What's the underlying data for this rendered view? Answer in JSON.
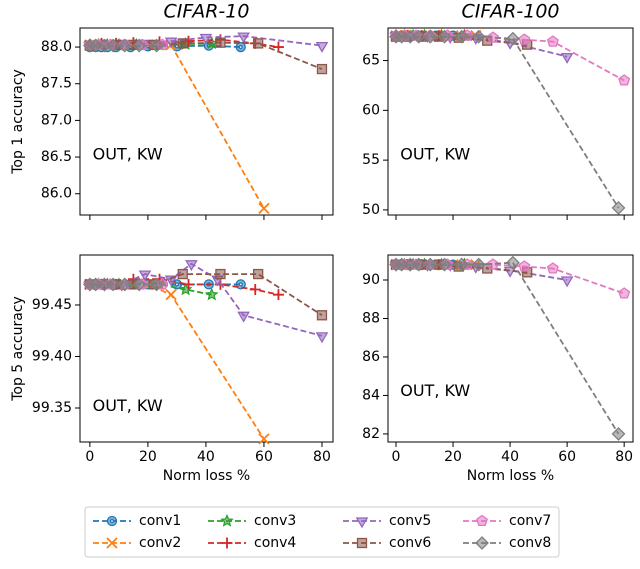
{
  "chart_data": [
    {
      "type": "line",
      "title": "CIFAR-10",
      "ylabel": "Top 1 accuracy",
      "annotation": "OUT, KW",
      "show_xticklabels": false,
      "xlim": [
        -3.4,
        83.8
      ],
      "xticks": [
        0,
        20,
        40,
        60,
        80
      ],
      "ylim": [
        85.71,
        88.26
      ],
      "yticks": [
        {
          "value": 88,
          "label": "88.0"
        },
        87.5,
        {
          "value": 87,
          "label": "87.0"
        },
        86.5,
        {
          "value": 86,
          "label": "86.0"
        }
      ],
      "series": [
        {
          "x": [
            0,
            2,
            4,
            6,
            9,
            14,
            20,
            30,
            41,
            52
          ],
          "values": [
            88.0,
            88.0,
            88.0,
            88.0,
            88.0,
            88.0,
            88.01,
            88.01,
            88.02,
            88.0
          ]
        },
        {
          "x": [
            0,
            2,
            4,
            6,
            9,
            14,
            20,
            28,
            60
          ],
          "values": [
            88.03,
            88.03,
            88.03,
            88.03,
            88.03,
            88.03,
            88.03,
            88.03,
            85.8
          ]
        },
        {
          "x": [
            0,
            3,
            6,
            10,
            16,
            24,
            33,
            42
          ],
          "values": [
            88.03,
            88.03,
            88.03,
            88.03,
            88.03,
            88.03,
            88.04,
            88.05
          ]
        },
        {
          "x": [
            0,
            4,
            9,
            15,
            24,
            34,
            45,
            57,
            65
          ],
          "values": [
            88.03,
            88.05,
            88.05,
            88.06,
            88.07,
            88.08,
            88.1,
            88.05,
            88.0
          ]
        },
        {
          "x": [
            0,
            5,
            11,
            19,
            28,
            40,
            53,
            80
          ],
          "values": [
            88.03,
            88.03,
            88.05,
            88.05,
            88.08,
            88.13,
            88.15,
            88.02
          ]
        },
        {
          "x": [
            0,
            4,
            9,
            15,
            22,
            32,
            45,
            58,
            80
          ],
          "values": [
            88.02,
            88.03,
            88.03,
            88.03,
            88.03,
            88.05,
            88.06,
            88.05,
            87.7
          ]
        },
        {
          "x": [
            0,
            3,
            7,
            12,
            18,
            25
          ],
          "values": [
            88.03,
            88.03,
            88.03,
            88.03,
            88.03,
            88.03
          ]
        },
        {
          "x": [
            0,
            2,
            5,
            8,
            12,
            17,
            23
          ],
          "values": [
            88.02,
            88.02,
            88.02,
            88.02,
            88.02,
            88.02,
            88.02
          ]
        }
      ]
    },
    {
      "type": "line",
      "title": "CIFAR-100",
      "annotation": "OUT, KW",
      "show_xticklabels": false,
      "xlim": [
        -2.8,
        83.1
      ],
      "xticks": [
        0,
        20,
        40,
        60,
        80
      ],
      "ylim": [
        49.49,
        68.27
      ],
      "yticks": [
        50,
        55,
        60,
        65
      ],
      "series": [
        {
          "x": [
            0,
            2,
            4,
            6,
            9,
            14,
            20
          ],
          "values": [
            67.5,
            67.5,
            67.5,
            67.5,
            67.5,
            67.5,
            67.5
          ]
        },
        {
          "x": [
            0,
            2,
            4,
            6,
            9,
            14,
            20,
            28
          ],
          "values": [
            67.5,
            67.5,
            67.5,
            67.5,
            67.5,
            67.5,
            67.5,
            67.5
          ]
        },
        {
          "x": [
            0,
            3,
            6,
            10,
            16,
            24
          ],
          "values": [
            67.5,
            67.5,
            67.5,
            67.5,
            67.5,
            67.5
          ]
        },
        {
          "x": [
            0,
            4,
            9,
            15,
            24
          ],
          "values": [
            67.5,
            67.5,
            67.5,
            67.5,
            67.5
          ]
        },
        {
          "x": [
            0,
            5,
            11,
            19,
            28,
            40,
            60
          ],
          "values": [
            67.5,
            67.5,
            67.5,
            67.4,
            67.3,
            66.8,
            65.4
          ]
        },
        {
          "x": [
            0,
            4,
            9,
            15,
            22,
            32,
            46
          ],
          "values": [
            67.4,
            67.4,
            67.4,
            67.4,
            67.3,
            67.0,
            66.6
          ]
        },
        {
          "x": [
            0,
            3,
            7,
            12,
            18,
            25,
            34,
            45,
            55,
            80
          ],
          "values": [
            67.5,
            67.5,
            67.5,
            67.5,
            67.5,
            67.5,
            67.3,
            67.1,
            66.9,
            63.0
          ]
        },
        {
          "x": [
            0,
            2,
            5,
            8,
            12,
            17,
            23,
            29,
            41,
            78
          ],
          "values": [
            67.4,
            67.4,
            67.4,
            67.4,
            67.4,
            67.4,
            67.4,
            67.4,
            67.2,
            50.2
          ]
        }
      ]
    },
    {
      "type": "line",
      "ylabel": "Top 5 accuracy",
      "xlabel": "Norm loss %",
      "annotation": "OUT, KW",
      "show_xticklabels": true,
      "xlim": [
        -3.4,
        83.8
      ],
      "xticks": [
        0,
        20,
        40,
        60,
        80
      ],
      "ylim": [
        99.317,
        99.4985
      ],
      "yticks": [
        99.35,
        {
          "value": 99.4,
          "label": "99.40"
        },
        99.45
      ],
      "series": [
        {
          "x": [
            0,
            2,
            4,
            6,
            9,
            14,
            20,
            30,
            41,
            52
          ],
          "values": [
            99.47,
            99.47,
            99.47,
            99.47,
            99.47,
            99.47,
            99.47,
            99.47,
            99.47,
            99.47
          ]
        },
        {
          "x": [
            0,
            2,
            4,
            6,
            9,
            14,
            20,
            28,
            60
          ],
          "values": [
            99.47,
            99.47,
            99.47,
            99.47,
            99.47,
            99.47,
            99.47,
            99.46,
            99.32
          ]
        },
        {
          "x": [
            0,
            3,
            6,
            10,
            16,
            24,
            33,
            42
          ],
          "values": [
            99.47,
            99.47,
            99.47,
            99.47,
            99.47,
            99.47,
            99.465,
            99.46
          ]
        },
        {
          "x": [
            0,
            4,
            9,
            15,
            24,
            34,
            45,
            57,
            65
          ],
          "values": [
            99.47,
            99.47,
            99.47,
            99.475,
            99.475,
            99.47,
            99.47,
            99.465,
            99.46
          ]
        },
        {
          "x": [
            0,
            5,
            11,
            19,
            28,
            35,
            44,
            53,
            80
          ],
          "values": [
            99.47,
            99.47,
            99.47,
            99.48,
            99.475,
            99.49,
            99.475,
            99.44,
            99.42
          ]
        },
        {
          "x": [
            0,
            4,
            9,
            15,
            22,
            32,
            45,
            58,
            80
          ],
          "values": [
            99.47,
            99.47,
            99.47,
            99.47,
            99.47,
            99.48,
            99.48,
            99.48,
            99.44
          ]
        },
        {
          "x": [
            0,
            3,
            7,
            12,
            18,
            25
          ],
          "values": [
            99.47,
            99.47,
            99.47,
            99.47,
            99.47,
            99.47
          ]
        },
        {
          "x": [
            0,
            2,
            5,
            8,
            12,
            17,
            23
          ],
          "values": [
            99.47,
            99.47,
            99.47,
            99.47,
            99.47,
            99.47,
            99.47
          ]
        }
      ]
    },
    {
      "type": "line",
      "xlabel": "Norm loss %",
      "annotation": "OUT, KW",
      "show_xticklabels": true,
      "xlim": [
        -2.8,
        83.1
      ],
      "xticks": [
        0,
        20,
        40,
        60,
        80
      ],
      "ylim": [
        81.58,
        91.3
      ],
      "yticks": [
        82,
        84,
        86,
        88,
        90
      ],
      "series": [
        {
          "x": [
            0,
            2,
            4,
            6,
            9,
            14,
            20
          ],
          "values": [
            90.8,
            90.8,
            90.8,
            90.8,
            90.8,
            90.8,
            90.8
          ]
        },
        {
          "x": [
            0,
            2,
            4,
            6,
            9,
            14,
            20,
            28
          ],
          "values": [
            90.8,
            90.8,
            90.8,
            90.8,
            90.8,
            90.8,
            90.8,
            90.8
          ]
        },
        {
          "x": [
            0,
            3,
            6,
            10,
            16,
            24
          ],
          "values": [
            90.8,
            90.8,
            90.8,
            90.8,
            90.8,
            90.8
          ]
        },
        {
          "x": [
            0,
            4,
            9,
            15,
            24
          ],
          "values": [
            90.8,
            90.8,
            90.8,
            90.8,
            90.8
          ]
        },
        {
          "x": [
            0,
            5,
            11,
            19,
            28,
            40,
            60
          ],
          "values": [
            90.8,
            90.8,
            90.8,
            90.8,
            90.7,
            90.5,
            90.0
          ]
        },
        {
          "x": [
            0,
            4,
            9,
            15,
            22,
            32,
            46
          ],
          "values": [
            90.8,
            90.8,
            90.8,
            90.8,
            90.7,
            90.6,
            90.4
          ]
        },
        {
          "x": [
            0,
            3,
            7,
            12,
            18,
            25,
            34,
            45,
            55,
            80
          ],
          "values": [
            90.8,
            90.8,
            90.8,
            90.8,
            90.8,
            90.8,
            90.8,
            90.7,
            90.6,
            89.3
          ]
        },
        {
          "x": [
            0,
            2,
            5,
            8,
            12,
            17,
            23,
            29,
            41,
            78
          ],
          "values": [
            90.8,
            90.8,
            90.8,
            90.8,
            90.8,
            90.8,
            90.8,
            90.8,
            90.9,
            82.0
          ]
        }
      ]
    }
  ],
  "legend": {
    "position": "lower center",
    "entries": [
      {
        "name": "conv1",
        "color": "#1f77b4",
        "marker": "circle"
      },
      {
        "name": "conv2",
        "color": "#ff7f0e",
        "marker": "x"
      },
      {
        "name": "conv3",
        "color": "#2ca02c",
        "marker": "star"
      },
      {
        "name": "conv4",
        "color": "#d62728",
        "marker": "plus"
      },
      {
        "name": "conv5",
        "color": "#9467bd",
        "marker": "triangle-down"
      },
      {
        "name": "conv6",
        "color": "#8c564b",
        "marker": "square"
      },
      {
        "name": "conv7",
        "color": "#e377c2",
        "marker": "pentagon"
      },
      {
        "name": "conv8",
        "color": "#7f7f7f",
        "marker": "diamond"
      }
    ]
  }
}
